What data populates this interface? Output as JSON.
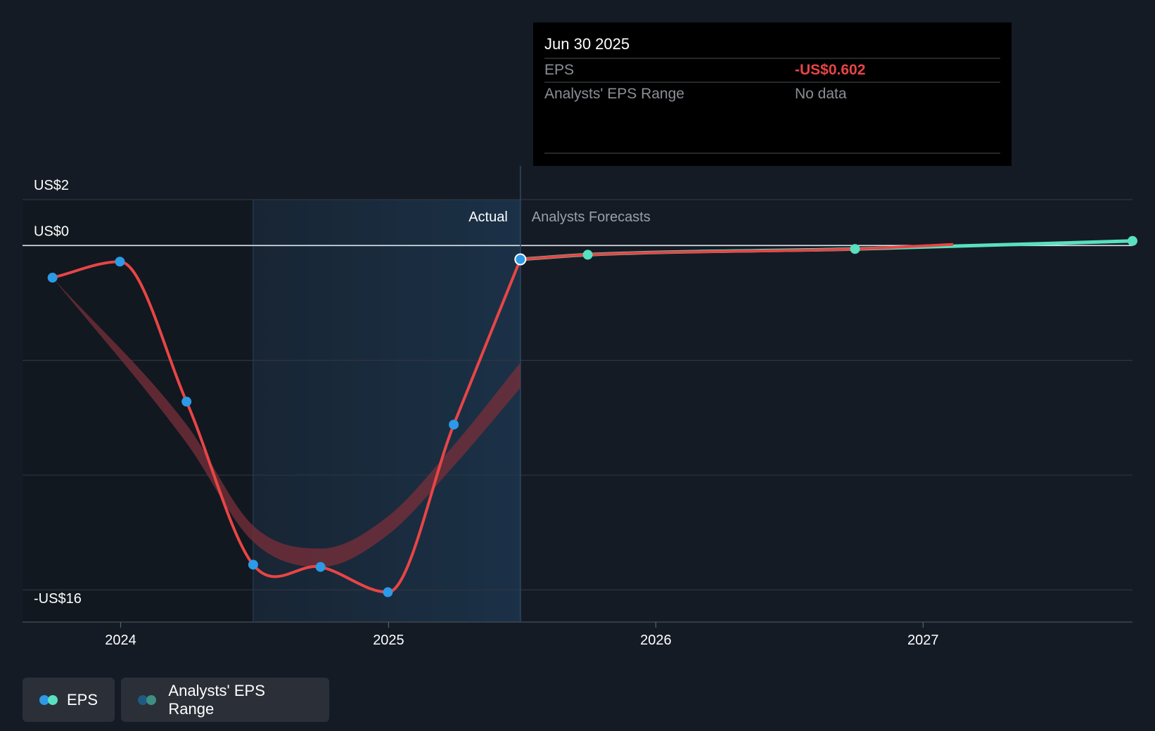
{
  "tooltip": {
    "date": "Jun 30 2025",
    "rows": [
      {
        "label": "EPS",
        "value": "-US$0.602",
        "color": "#e84545"
      },
      {
        "label": "Analysts' EPS Range",
        "value": "No data",
        "color": "#8a8f96"
      }
    ]
  },
  "sections": {
    "past": "Actual",
    "future": "Analysts Forecasts"
  },
  "legend": {
    "eps": "EPS",
    "range": "Analysts' EPS Range"
  },
  "colors": {
    "background": "#151b24",
    "eps_line": "#e84545",
    "past_point": "#2c9ae6",
    "forecast_point": "#58e0c0",
    "forecast_line": "#58e0c0",
    "range_band": "#7a2f3a",
    "actual_shade": "#1b3147",
    "gridline": "#2f3541"
  },
  "chart_data": {
    "type": "line",
    "title": "",
    "xlabel": "",
    "ylabel": "",
    "y_tick_labels": [
      {
        "value": 2,
        "label": "US$2"
      },
      {
        "value": 0,
        "label": "US$0"
      },
      {
        "value": -16,
        "label": "-US$16"
      }
    ],
    "y_gridlines": [
      2,
      0,
      -5,
      -10,
      -15
    ],
    "ylim": [
      -16.4,
      2
    ],
    "xlim": [
      "2023-08-20",
      "2027-10-14"
    ],
    "x_ticks": [
      {
        "date": "2024-01-01",
        "label": "2024"
      },
      {
        "date": "2025-01-01",
        "label": "2025"
      },
      {
        "date": "2026-01-01",
        "label": "2026"
      },
      {
        "date": "2027-01-01",
        "label": "2027"
      }
    ],
    "actual_shade_start": "2024-06-30",
    "today": "2025-06-30",
    "highlighted_date": "2025-06-30",
    "series": [
      {
        "name": "EPS",
        "points": [
          {
            "date": "2023-09-30",
            "value": -1.4
          },
          {
            "date": "2023-12-31",
            "value": -0.7
          },
          {
            "date": "2024-03-31",
            "value": -6.8
          },
          {
            "date": "2024-06-30",
            "value": -13.9
          },
          {
            "date": "2024-09-30",
            "value": -14.0
          },
          {
            "date": "2024-12-31",
            "value": -15.1
          },
          {
            "date": "2025-03-31",
            "value": -7.8
          },
          {
            "date": "2025-06-30",
            "value": -0.602
          }
        ]
      },
      {
        "name": "EPS forecast",
        "points": [
          {
            "date": "2025-09-30",
            "value": -0.4
          },
          {
            "date": "2026-09-30",
            "value": -0.15
          },
          {
            "date": "2027-09-30",
            "value": 0.2
          }
        ]
      }
    ],
    "range_band": [
      {
        "date": "2023-09-30",
        "low": -1.4,
        "high": -1.4
      },
      {
        "date": "2024-03-31",
        "low": -8.6,
        "high": -7.8
      },
      {
        "date": "2024-06-30",
        "low": -12.9,
        "high": -12.2
      },
      {
        "date": "2024-09-30",
        "low": -14.0,
        "high": -13.2
      },
      {
        "date": "2024-12-31",
        "low": -12.6,
        "high": -11.8
      },
      {
        "date": "2025-03-31",
        "low": -9.6,
        "high": -8.7
      },
      {
        "date": "2025-06-30",
        "low": -6.2,
        "high": -5.1
      }
    ]
  }
}
